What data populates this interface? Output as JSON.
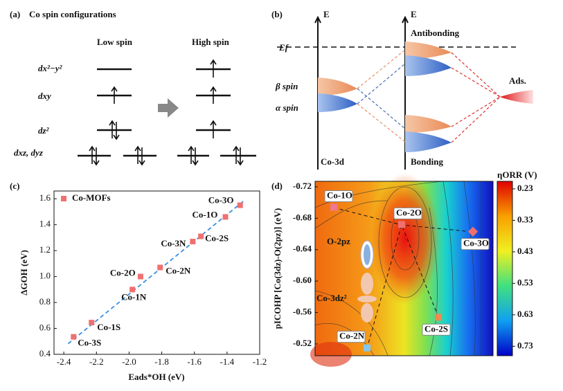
{
  "panels": {
    "a": {
      "label": "(a)",
      "title": "Co spin configurations",
      "low": "Low spin",
      "high": "High spin",
      "orbitals": [
        "dx²−y²",
        "dxy",
        "dz²",
        "dxz, dyz"
      ]
    },
    "b": {
      "label": "(b)",
      "axis1": "E",
      "axis2": "E",
      "fermi": "Ef",
      "antibonding": "Antibonding",
      "bonding": "Bonding",
      "co": "Co-3d",
      "beta": "β spin",
      "alpha": "α spin",
      "ads": "Ads."
    }
  },
  "chart_data": [
    {
      "type": "scatter",
      "panel": "(c)",
      "xlabel": "Eads*OH (eV)",
      "ylabel": "ΔGOH (eV)",
      "xlim": [
        -2.46,
        -1.2
      ],
      "ylim": [
        0.4,
        1.66
      ],
      "xticks": [
        -2.4,
        -2.2,
        {
          "value": -2,
          "label": "-2.0"
        },
        -1.8,
        -1.6,
        -1.4,
        -1.2
      ],
      "yticks": [
        0.4,
        0.6,
        0.8,
        {
          "value": 1,
          "label": "1.0"
        },
        1.2,
        1.4,
        1.6
      ],
      "series": [
        {
          "name": "Co-MOFs",
          "color": "#f07070",
          "x": [
            -2.34,
            -2.23,
            -1.98,
            -1.93,
            -1.81,
            -1.61,
            -1.56,
            -1.41,
            -1.32
          ],
          "y": [
            0.535,
            0.645,
            0.9,
            1.0,
            1.07,
            1.27,
            1.31,
            1.46,
            1.55
          ],
          "labels": [
            "Co-3S",
            "Co-1S",
            "Co-1N",
            "Co-2O",
            "Co-2N",
            "Co-3N",
            "Co-2S",
            "Co-1O",
            "Co-3O"
          ]
        }
      ]
    },
    {
      "type": "contour",
      "panel": "(d)",
      "ylabel": "pICOHP [Co(3dz)-O(2pz)] (eV)",
      "ylim": [
        -0.505,
        -0.727
      ],
      "yticks": [
        -0.72,
        -0.68,
        -0.64,
        {
          "value": -0.6,
          "label": "-0.60"
        },
        -0.56,
        -0.52
      ],
      "points": {
        "categories": [
          "Co-1O",
          "Co-2O",
          "Co-3O",
          "Co-2S",
          "Co-2N"
        ],
        "values": [
          -0.694,
          -0.672,
          -0.663,
          -0.554,
          -0.515
        ],
        "colors": [
          "#f07890",
          "#f07070",
          "#f07070",
          "#f08a50",
          "#80c8f0"
        ]
      },
      "annotations": [
        "O-2pz",
        "Co-3dz²"
      ],
      "colorbar": {
        "title": "ηORR (V)",
        "lim": [
          0.206,
          0.76
        ],
        "ticks": [
          0.23,
          0.33,
          0.43,
          0.53,
          0.63,
          0.73
        ]
      }
    }
  ]
}
